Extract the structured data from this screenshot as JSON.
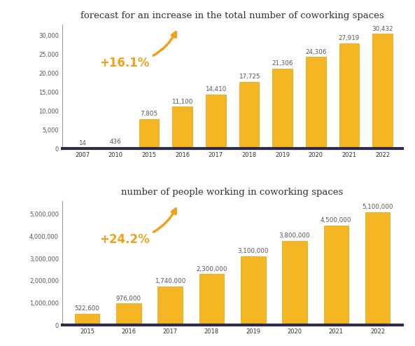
{
  "chart_data": [
    {
      "type": "bar",
      "title": "forecast for an increase in the total number of coworking spaces",
      "annotation": "+16.1%",
      "categories": [
        "2007",
        "2010",
        "2015",
        "2016",
        "2017",
        "2018",
        "2019",
        "2020",
        "2021",
        "2022"
      ],
      "values": [
        14,
        436,
        7805,
        11100,
        14410,
        17725,
        21306,
        24306,
        27919,
        30432
      ],
      "value_labels": [
        "14",
        "436",
        "7,805",
        "11,100",
        "14,410",
        "17,725",
        "21,306",
        "24,306",
        "27,919",
        "30,432"
      ],
      "color": "#f5b623",
      "ylim": [
        0,
        33000
      ],
      "yticks": [
        0,
        {
          "value": 5000,
          "label": "5,000"
        },
        {
          "value": 10000,
          "label": "10,000"
        },
        {
          "value": 15000,
          "label": "15,000"
        },
        {
          "value": 20000,
          "label": "20,000"
        },
        {
          "value": 25000,
          "label": "25,000"
        },
        {
          "value": 30000,
          "label": "30,000"
        }
      ],
      "data_labels": true,
      "grid": false
    },
    {
      "type": "bar",
      "title": "number of people working in coworking spaces",
      "annotation": "+24.2%",
      "categories": [
        "2015",
        "2016",
        "2017",
        "2018",
        "2019",
        "2020",
        "2021",
        "2022"
      ],
      "values": [
        522600,
        976000,
        1740000,
        2300000,
        3100000,
        3800000,
        4500000,
        5100000
      ],
      "value_labels": [
        "522,600",
        "976,000",
        "1,740,000",
        "2,300,000",
        "3,100,000",
        "3,800,000",
        "4,500,000",
        "5,100,000"
      ],
      "color": "#f5b623",
      "ylim": [
        0,
        5600000
      ],
      "yticks": [
        0,
        {
          "value": 1000000,
          "label": "1,000,000"
        },
        {
          "value": 2000000,
          "label": "2,000,000"
        },
        {
          "value": 3000000,
          "label": "3,000,000"
        },
        {
          "value": 4000000,
          "label": "4,000,000"
        },
        {
          "value": 5000000,
          "label": "5,000,000"
        }
      ],
      "data_labels": true,
      "grid": false
    }
  ]
}
